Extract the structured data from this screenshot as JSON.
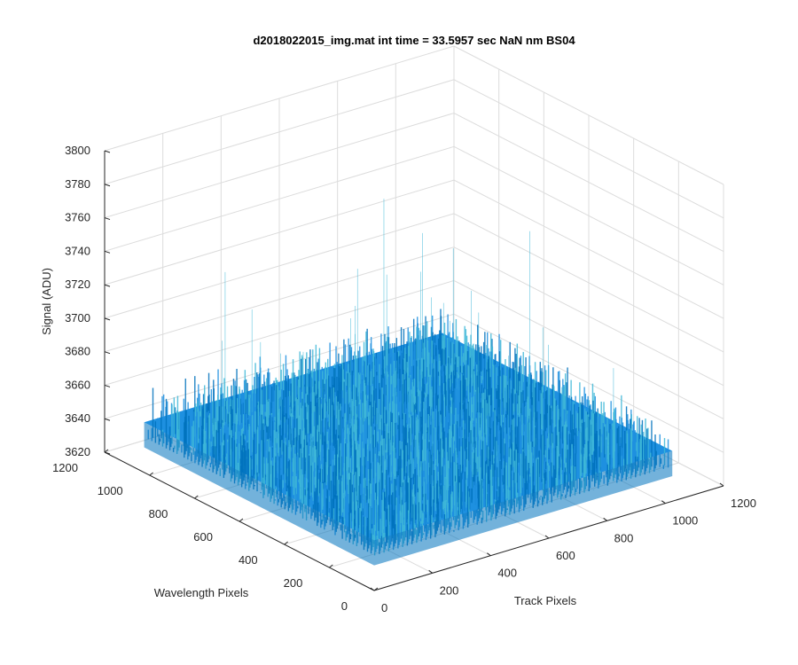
{
  "chart_data": {
    "type": "surface",
    "title": "d2018022015_img.mat int time = 33.5957 sec  NaN nm BS04",
    "xlabel": "Track Pixels",
    "ylabel": "Wavelength Pixels",
    "zlabel": "Signal (ADU)",
    "xlim": [
      0,
      1200
    ],
    "ylim": [
      0,
      1200
    ],
    "zlim": [
      3620,
      3800
    ],
    "x_ticks": [
      "0",
      "200",
      "400",
      "600",
      "800",
      "1000",
      "1200"
    ],
    "y_ticks": [
      "0",
      "200",
      "400",
      "600",
      "800",
      "1000",
      "1200"
    ],
    "z_ticks": [
      "3620",
      "3640",
      "3660",
      "3680",
      "3700",
      "3720",
      "3740",
      "3760",
      "3780",
      "3800"
    ],
    "grid": true,
    "view": "3d-isometric",
    "surface": {
      "x_range": [
        0,
        1024
      ],
      "y_range": [
        0,
        1024
      ],
      "mean_signal": 3650,
      "noise_range": [
        3635,
        3670
      ],
      "spike_max": 3745
    },
    "colors": {
      "surface_low": "#0072BD",
      "surface_mid": "#1E90E0",
      "surface_high": "#3FB8D8",
      "grid": "#dcdcdc",
      "axis": "#262626"
    }
  }
}
